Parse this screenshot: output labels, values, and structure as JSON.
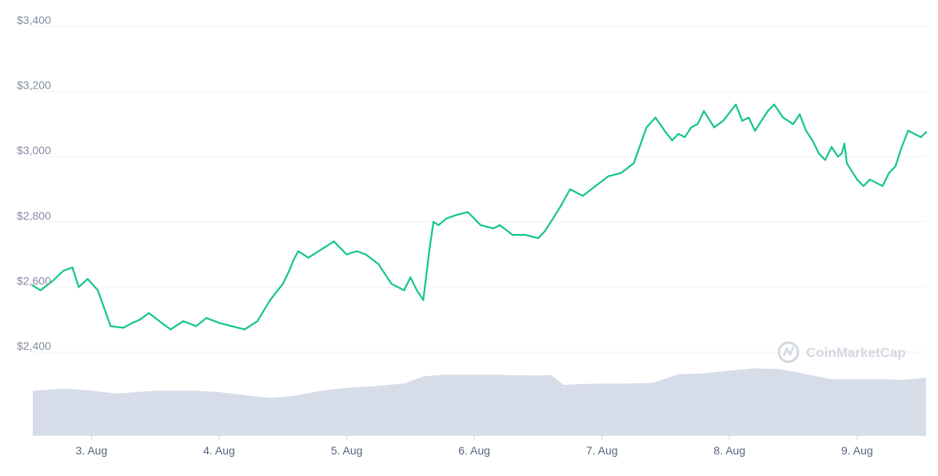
{
  "chart_data": {
    "type": "line",
    "y_ticks": [
      {
        "value": 3400,
        "label": "$3,400"
      },
      {
        "value": 3200,
        "label": "$3,200"
      },
      {
        "value": 3000,
        "label": "$3,000"
      },
      {
        "value": 2800,
        "label": "$2,800"
      },
      {
        "value": 2600,
        "label": "$2,600"
      },
      {
        "value": 2400,
        "label": "$2,400"
      }
    ],
    "ylim": [
      2400,
      3400
    ],
    "x_ticks": [
      {
        "value": 3,
        "label": "3. Aug"
      },
      {
        "value": 4,
        "label": "4. Aug"
      },
      {
        "value": 5,
        "label": "5. Aug"
      },
      {
        "value": 6,
        "label": "6. Aug"
      },
      {
        "value": 7,
        "label": "7. Aug"
      },
      {
        "value": 8,
        "label": "8. Aug"
      },
      {
        "value": 9,
        "label": "9. Aug"
      }
    ],
    "xlim": [
      2.54,
      9.54
    ],
    "price_series": {
      "color": "#16c784",
      "x": [
        2.54,
        2.6,
        2.7,
        2.78,
        2.85,
        2.9,
        2.97,
        3.05,
        3.15,
        3.25,
        3.32,
        3.38,
        3.45,
        3.55,
        3.62,
        3.72,
        3.82,
        3.9,
        4.0,
        4.1,
        4.2,
        4.3,
        4.4,
        4.5,
        4.55,
        4.58,
        4.62,
        4.7,
        4.82,
        4.9,
        5.0,
        5.08,
        5.15,
        5.25,
        5.35,
        5.45,
        5.5,
        5.55,
        5.6,
        5.65,
        5.68,
        5.72,
        5.78,
        5.85,
        5.95,
        6.05,
        6.15,
        6.2,
        6.3,
        6.4,
        6.5,
        6.55,
        6.6,
        6.68,
        6.75,
        6.85,
        6.95,
        7.05,
        7.15,
        7.25,
        7.35,
        7.42,
        7.5,
        7.55,
        7.6,
        7.65,
        7.7,
        7.75,
        7.8,
        7.88,
        7.95,
        8.05,
        8.1,
        8.15,
        8.2,
        8.3,
        8.35,
        8.42,
        8.5,
        8.55,
        8.6,
        8.65,
        8.7,
        8.75,
        8.8,
        8.85,
        8.88,
        8.9,
        8.92,
        9.0,
        9.05,
        9.1,
        9.15,
        9.2,
        9.25,
        9.3,
        9.35,
        9.4,
        9.45,
        9.5,
        9.54
      ],
      "y": [
        2605,
        2590,
        2620,
        2650,
        2660,
        2600,
        2625,
        2590,
        2480,
        2475,
        2490,
        2500,
        2520,
        2490,
        2470,
        2495,
        2480,
        2505,
        2490,
        2480,
        2470,
        2495,
        2560,
        2610,
        2650,
        2680,
        2710,
        2690,
        2720,
        2740,
        2700,
        2710,
        2700,
        2670,
        2610,
        2590,
        2630,
        2590,
        2560,
        2720,
        2800,
        2790,
        2810,
        2820,
        2830,
        2790,
        2780,
        2790,
        2760,
        2760,
        2750,
        2770,
        2800,
        2850,
        2900,
        2880,
        2910,
        2940,
        2950,
        2980,
        3090,
        3120,
        3075,
        3050,
        3070,
        3060,
        3090,
        3100,
        3140,
        3090,
        3110,
        3160,
        3110,
        3120,
        3080,
        3140,
        3160,
        3120,
        3100,
        3130,
        3080,
        3050,
        3010,
        2990,
        3030,
        3000,
        3010,
        3040,
        2980,
        2930,
        2910,
        2930,
        2920,
        2910,
        2950,
        2970,
        3030,
        3080,
        3070,
        3060,
        3075
      ]
    },
    "volume_series": {
      "color": "#cfd6e4",
      "x": [
        2.54,
        2.8,
        3.0,
        3.2,
        3.5,
        3.8,
        4.0,
        4.2,
        4.4,
        4.6,
        4.8,
        5.0,
        5.2,
        5.45,
        5.6,
        5.75,
        6.0,
        6.2,
        6.5,
        6.6,
        6.7,
        6.8,
        7.0,
        7.2,
        7.4,
        7.6,
        7.8,
        8.0,
        8.2,
        8.4,
        8.6,
        8.8,
        9.0,
        9.2,
        9.35,
        9.54
      ],
      "y": [
        0.62,
        0.65,
        0.62,
        0.58,
        0.62,
        0.62,
        0.6,
        0.56,
        0.52,
        0.55,
        0.62,
        0.66,
        0.68,
        0.72,
        0.82,
        0.84,
        0.84,
        0.84,
        0.83,
        0.84,
        0.7,
        0.71,
        0.72,
        0.72,
        0.73,
        0.85,
        0.86,
        0.9,
        0.93,
        0.92,
        0.85,
        0.78,
        0.78,
        0.78,
        0.77,
        0.8
      ]
    },
    "watermark": "CoinMarketCap",
    "grid": true,
    "legend": "none"
  }
}
